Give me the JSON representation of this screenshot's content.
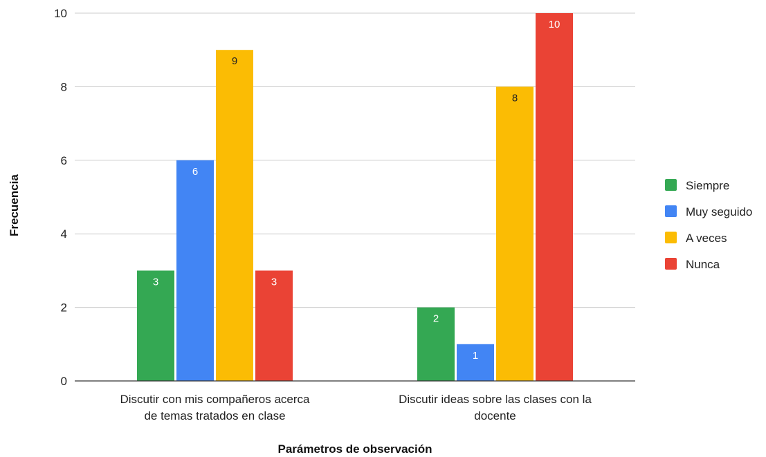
{
  "chart_data": {
    "type": "bar",
    "xlabel": "Parámetros de observación",
    "ylabel": "Frecuencia",
    "ylim": [
      0,
      10
    ],
    "yticks": [
      0,
      2,
      4,
      6,
      8,
      10
    ],
    "grid": true,
    "legend_position": "right",
    "categories": [
      [
        "Discutir con mis compañeros acerca",
        "de temas tratados en clase"
      ],
      [
        "Discutir ideas sobre las clases con la",
        "docente"
      ]
    ],
    "series": [
      {
        "name": "Siempre",
        "color": "#34a853",
        "label_color": "#ffffff",
        "values": [
          3,
          2
        ]
      },
      {
        "name": "Muy seguido",
        "color": "#4285f4",
        "label_color": "#ffffff",
        "values": [
          6,
          1
        ]
      },
      {
        "name": "A veces",
        "color": "#fbbc04",
        "label_color": "#222222",
        "values": [
          9,
          8
        ]
      },
      {
        "name": "Nunca",
        "color": "#ea4335",
        "label_color": "#ffffff",
        "values": [
          3,
          10
        ]
      }
    ]
  }
}
